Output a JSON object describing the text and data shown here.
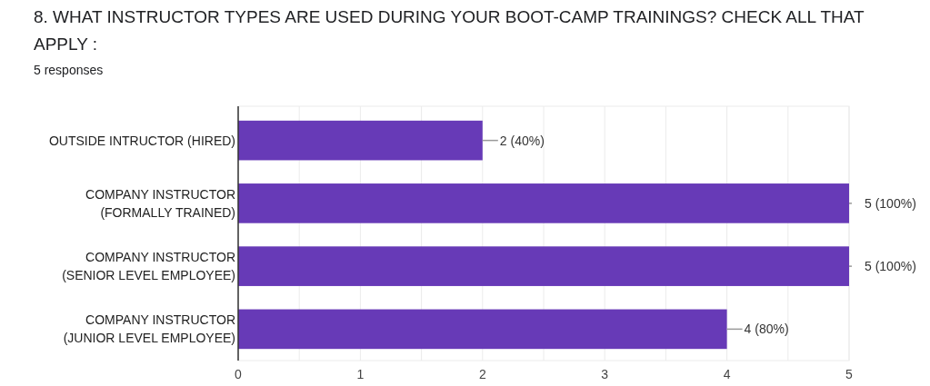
{
  "chart_data": {
    "type": "bar",
    "orientation": "horizontal",
    "title": "8. WHAT INSTRUCTOR TYPES ARE USED DURING YOUR BOOT-CAMP TRAININGS? CHECK ALL THAT APPLY  :",
    "subtitle": "5 responses",
    "categories": [
      "OUTSIDE INTRUCTOR (HIRED)",
      "COMPANY INSTRUCTOR\n(FORMALLY TRAINED)",
      "COMPANY INSTRUCTOR\n(SENIOR LEVEL EMPLOYEE)",
      "COMPANY INSTRUCTOR\n(JUNIOR LEVEL EMPLOYEE)"
    ],
    "values": [
      2,
      5,
      5,
      4
    ],
    "color": "#673ab7",
    "value_labels": [
      "2 (40%)",
      "5 (100%)",
      "5 (100%)",
      "4 (80%)"
    ],
    "xlim": [
      0,
      5
    ],
    "xticks": [
      0,
      {
        "value": 0.5,
        "label": null
      },
      1,
      {
        "value": 1.5,
        "label": null
      },
      2,
      {
        "value": 2.5,
        "label": null
      },
      3,
      {
        "value": 3.5,
        "label": null
      },
      4,
      {
        "value": 4.5,
        "label": null
      },
      5
    ],
    "grid": "x"
  }
}
